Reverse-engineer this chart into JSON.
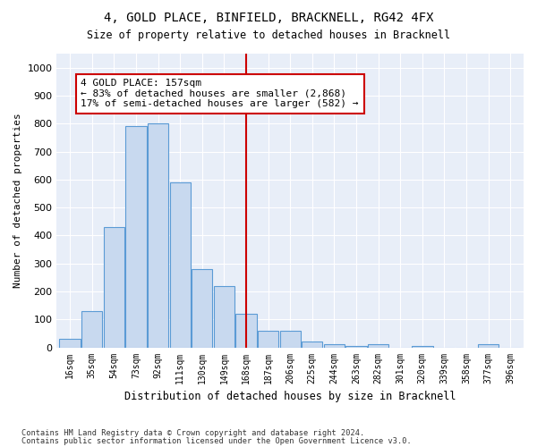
{
  "title": "4, GOLD PLACE, BINFIELD, BRACKNELL, RG42 4FX",
  "subtitle": "Size of property relative to detached houses in Bracknell",
  "xlabel": "Distribution of detached houses by size in Bracknell",
  "ylabel": "Number of detached properties",
  "bins": [
    "16sqm",
    "35sqm",
    "54sqm",
    "73sqm",
    "92sqm",
    "111sqm",
    "130sqm",
    "149sqm",
    "168sqm",
    "187sqm",
    "206sqm",
    "225sqm",
    "244sqm",
    "263sqm",
    "282sqm",
    "301sqm",
    "320sqm",
    "339sqm",
    "358sqm",
    "377sqm",
    "396sqm"
  ],
  "bar_heights": [
    30,
    130,
    430,
    790,
    800,
    590,
    280,
    220,
    120,
    60,
    60,
    20,
    10,
    5,
    10,
    0,
    5,
    0,
    0,
    10,
    0
  ],
  "bar_color": "#c8d9ef",
  "bar_edge_color": "#5b9bd5",
  "vline_x": 8,
  "vline_color": "#cc0000",
  "annotation_text": "4 GOLD PLACE: 157sqm\n← 83% of detached houses are smaller (2,868)\n17% of semi-detached houses are larger (582) →",
  "annotation_box_color": "#cc0000",
  "annotation_fontsize": 8.0,
  "ylim": [
    0,
    1050
  ],
  "yticks": [
    0,
    100,
    200,
    300,
    400,
    500,
    600,
    700,
    800,
    900,
    1000
  ],
  "background_color": "#e8eef8",
  "footer1": "Contains HM Land Registry data © Crown copyright and database right 2024.",
  "footer2": "Contains public sector information licensed under the Open Government Licence v3.0."
}
